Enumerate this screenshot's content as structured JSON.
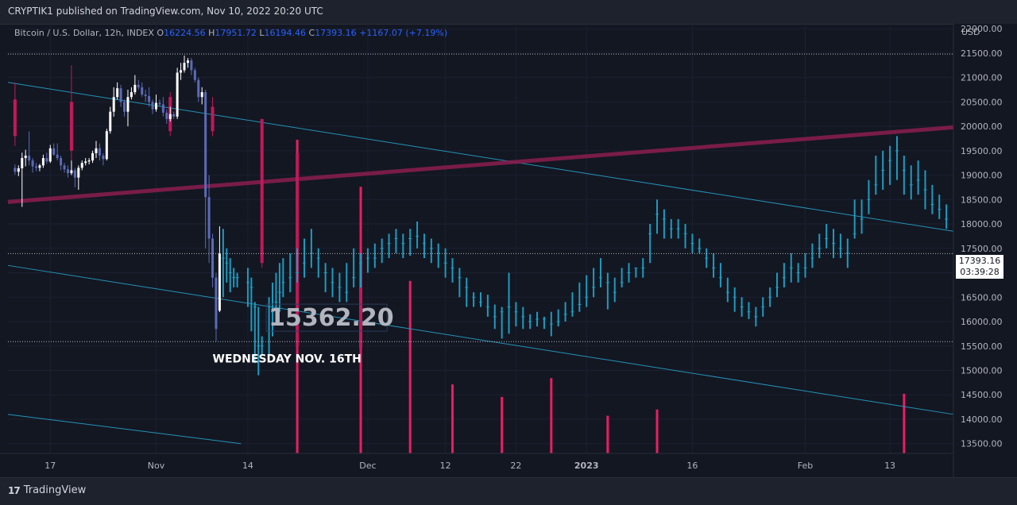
{
  "header": {
    "published_by": "CRYPTIK1 published on TradingView.com, Nov 10, 2022 20:20 UTC"
  },
  "legend": {
    "symbol": "Bitcoin / U.S. Dollar, 12h, INDEX",
    "open_label": "O",
    "open": "16224.56",
    "high_label": "H",
    "high": "17951.72",
    "low_label": "L",
    "low": "16194.46",
    "close_label": "C",
    "close": "17393.16",
    "change": "+1167.07 (+7.19%)"
  },
  "currency": "USD",
  "last_price": {
    "price": "17393.16",
    "countdown": "03:39:28"
  },
  "footer": {
    "brand": "TradingView",
    "logo_mark": "17"
  },
  "colors": {
    "background": "#131722",
    "bull": "#ffffff",
    "bear_candle": "#c2185b",
    "projection": "#1e9bbf",
    "channel": "#26a0c6",
    "resistance": "#8c1d4f",
    "volume": "#e91e63"
  },
  "chart_data": {
    "type": "bar",
    "title": "Bitcoin / U.S. Dollar, 12h, INDEX",
    "ylabel": "USD",
    "ylim": [
      13300,
      22100
    ],
    "yticks": [
      13500,
      14000,
      14500,
      15000,
      15500,
      16000,
      16500,
      17000,
      17500,
      18000,
      18500,
      19000,
      19500,
      20000,
      20500,
      21000,
      21500,
      22000
    ],
    "ytick_labels": [
      "13500.00",
      "14000.00",
      "14500.00",
      "15000.00",
      "15500.00",
      "16000.00",
      "16500.00",
      "17000.00",
      "17500.00",
      "18000.00",
      "18500.00",
      "19000.00",
      "19500.00",
      "20000.00",
      "20500.00",
      "21000.00",
      "21500.00",
      "22000.00"
    ],
    "x_range": [
      "2022-10-11",
      "2023-02-22"
    ],
    "xticks": [
      {
        "date": "2022-10-17",
        "label": "17"
      },
      {
        "date": "2022-11-01",
        "label": "Nov"
      },
      {
        "date": "2022-11-14",
        "label": "14"
      },
      {
        "date": "2022-12-01",
        "label": "Dec"
      },
      {
        "date": "2022-12-12",
        "label": "12"
      },
      {
        "date": "2022-12-22",
        "label": "22"
      },
      {
        "date": "2023-01-01",
        "label": "2023"
      },
      {
        "date": "2023-01-16",
        "label": "16"
      },
      {
        "date": "2023-02-01",
        "label": "Feb"
      },
      {
        "date": "2023-02-13",
        "label": "13"
      }
    ],
    "actual_candles": [
      [
        "2022-10-12",
        19150,
        19220,
        19010,
        19070
      ],
      [
        "2022-10-12 12:00",
        19070,
        19200,
        18980,
        19140
      ],
      [
        "2022-10-13",
        19140,
        19460,
        18350,
        19350
      ],
      [
        "2022-10-13 12:00",
        19350,
        19520,
        19180,
        19400
      ],
      [
        "2022-10-14",
        19400,
        19900,
        19200,
        19300
      ],
      [
        "2022-10-14 12:00",
        19300,
        19350,
        19050,
        19180
      ],
      [
        "2022-10-15",
        19180,
        19250,
        19080,
        19150
      ],
      [
        "2022-10-15 12:00",
        19150,
        19230,
        19080,
        19200
      ],
      [
        "2022-10-16",
        19200,
        19420,
        19150,
        19350
      ],
      [
        "2022-10-16 12:00",
        19350,
        19460,
        19230,
        19280
      ],
      [
        "2022-10-17",
        19280,
        19620,
        19250,
        19550
      ],
      [
        "2022-10-17 12:00",
        19550,
        19650,
        19400,
        19420
      ],
      [
        "2022-10-18",
        19420,
        19650,
        19300,
        19350
      ],
      [
        "2022-10-18 12:00",
        19350,
        19400,
        19100,
        19200
      ],
      [
        "2022-10-19",
        19200,
        19250,
        19050,
        19120
      ],
      [
        "2022-10-19 12:00",
        19120,
        19200,
        18950,
        19040
      ],
      [
        "2022-10-20",
        19040,
        19300,
        19000,
        19100
      ],
      [
        "2022-10-20 12:00",
        19100,
        19150,
        18750,
        18950
      ],
      [
        "2022-10-21",
        18950,
        19200,
        18700,
        19150
      ],
      [
        "2022-10-21 12:00",
        19150,
        19300,
        19100,
        19250
      ],
      [
        "2022-10-22",
        19250,
        19350,
        19200,
        19280
      ],
      [
        "2022-10-22 12:00",
        19280,
        19350,
        19220,
        19300
      ],
      [
        "2022-10-23",
        19300,
        19500,
        19250,
        19450
      ],
      [
        "2022-10-23 12:00",
        19450,
        19700,
        19350,
        19550
      ],
      [
        "2022-10-24",
        19550,
        19650,
        19300,
        19400
      ],
      [
        "2022-10-24 12:00",
        19400,
        19450,
        19200,
        19330
      ],
      [
        "2022-10-25",
        19330,
        19950,
        19300,
        19900
      ],
      [
        "2022-10-25 12:00",
        19900,
        20400,
        19850,
        20300
      ],
      [
        "2022-10-26",
        20300,
        20800,
        20200,
        20600
      ],
      [
        "2022-10-26 12:00",
        20600,
        20900,
        20550,
        20780
      ],
      [
        "2022-10-27",
        20780,
        20850,
        20400,
        20500
      ],
      [
        "2022-10-27 12:00",
        20500,
        20550,
        20200,
        20300
      ],
      [
        "2022-10-28",
        20300,
        20750,
        20000,
        20600
      ],
      [
        "2022-10-28 12:00",
        20600,
        20800,
        20550,
        20700
      ],
      [
        "2022-10-29",
        20700,
        21050,
        20650,
        20850
      ],
      [
        "2022-10-29 12:00",
        20850,
        20950,
        20750,
        20800
      ],
      [
        "2022-10-30",
        20800,
        20900,
        20600,
        20650
      ],
      [
        "2022-10-30 12:00",
        20650,
        20750,
        20500,
        20620
      ],
      [
        "2022-10-31",
        20620,
        20800,
        20400,
        20500
      ],
      [
        "2022-10-31 12:00",
        20500,
        20550,
        20250,
        20350
      ],
      [
        "2022-11-01",
        20350,
        20650,
        20300,
        20480
      ],
      [
        "2022-11-01 12:00",
        20480,
        20550,
        20400,
        20450
      ],
      [
        "2022-11-02",
        20450,
        20600,
        20200,
        20280
      ],
      [
        "2022-11-02 12:00",
        20280,
        20350,
        20050,
        20150
      ],
      [
        "2022-11-03",
        20150,
        20400,
        20100,
        20250
      ],
      [
        "2022-11-03 12:00",
        20250,
        20300,
        20150,
        20200
      ],
      [
        "2022-11-04",
        20200,
        21200,
        20150,
        21100
      ],
      [
        "2022-11-04 12:00",
        21100,
        21300,
        20950,
        21150
      ],
      [
        "2022-11-05",
        21150,
        21450,
        21100,
        21300
      ],
      [
        "2022-11-05 12:00",
        21300,
        21400,
        21200,
        21350
      ],
      [
        "2022-11-06",
        21350,
        21400,
        21050,
        21150
      ],
      [
        "2022-11-06 12:00",
        21150,
        21200,
        20900,
        20950
      ],
      [
        "2022-11-07",
        20950,
        21000,
        20500,
        20600
      ],
      [
        "2022-11-07 12:00",
        20600,
        20800,
        20450,
        20700
      ],
      [
        "2022-11-08",
        20700,
        20750,
        17500,
        18550
      ],
      [
        "2022-11-08 12:00",
        18550,
        19000,
        17200,
        17700
      ],
      [
        "2022-11-09",
        17700,
        17800,
        16700,
        16900
      ],
      [
        "2022-11-09 12:00",
        16900,
        17000,
        15600,
        15850
      ],
      [
        "2022-11-10",
        16224.56,
        17951.72,
        16194.46,
        17393.16
      ]
    ],
    "hypothetical_bear_candles": [
      [
        "2022-10-12",
        20550,
        20900,
        19600,
        19800
      ],
      [
        "2022-10-20",
        20500,
        21250,
        19300,
        19500
      ],
      [
        "2022-11-03",
        20600,
        20700,
        19800,
        19900
      ],
      [
        "2022-11-09",
        20400,
        20600,
        19800,
        19900
      ],
      [
        "2022-11-16",
        20150,
        20150,
        17100,
        17200
      ],
      [
        "2022-11-21",
        19450,
        19450,
        15400,
        15500
      ],
      [
        "2022-11-30",
        17400,
        17400,
        15350,
        15450
      ]
    ],
    "projection_bars": [
      [
        "2022-11-10 12:00",
        17300,
        17900,
        16500
      ],
      [
        "2022-11-11",
        17200,
        17500,
        16800
      ],
      [
        "2022-11-11 12:00",
        17000,
        17300,
        16600
      ],
      [
        "2022-11-12",
        16900,
        17100,
        16700
      ],
      [
        "2022-11-12 12:00",
        16900,
        17000,
        16700
      ],
      [
        "2022-11-14",
        16800,
        17100,
        16300
      ],
      [
        "2022-11-14 12:00",
        16700,
        16900,
        15800
      ],
      [
        "2022-11-15",
        16300,
        16400,
        15150
      ],
      [
        "2022-11-15 12:00",
        15500,
        16300,
        14900
      ],
      [
        "2022-11-16",
        15500,
        15700,
        15300
      ],
      [
        "2022-11-17",
        15800,
        16500,
        15300
      ],
      [
        "2022-11-17 12:00",
        16200,
        16800,
        15700
      ],
      [
        "2022-11-18",
        16400,
        17000,
        16000
      ],
      [
        "2022-11-18 12:00",
        16600,
        17200,
        16200
      ],
      [
        "2022-11-19",
        16800,
        17300,
        16500
      ],
      [
        "2022-11-20",
        16900,
        17400,
        16600
      ],
      [
        "2022-11-21",
        17000,
        17500,
        16800
      ],
      [
        "2022-11-22",
        17200,
        17700,
        16900
      ],
      [
        "2022-11-23",
        17400,
        17900,
        17100
      ],
      [
        "2022-11-24",
        17300,
        17500,
        16900
      ],
      [
        "2022-11-25",
        17000,
        17200,
        16600
      ],
      [
        "2022-11-26",
        16800,
        17100,
        16500
      ],
      [
        "2022-11-27",
        16700,
        17000,
        16400
      ],
      [
        "2022-11-28",
        16600,
        17200,
        16400
      ],
      [
        "2022-11-29",
        16900,
        17500,
        16700
      ],
      [
        "2022-11-30",
        17200,
        17400,
        16700
      ],
      [
        "2022-12-01",
        17300,
        17500,
        17000
      ],
      [
        "2022-12-02",
        17300,
        17600,
        17100
      ],
      [
        "2022-12-03",
        17500,
        17700,
        17200
      ],
      [
        "2022-12-04",
        17600,
        17800,
        17300
      ],
      [
        "2022-12-05",
        17700,
        17900,
        17400
      ],
      [
        "2022-12-06",
        17600,
        17800,
        17300
      ],
      [
        "2022-12-07",
        17700,
        17900,
        17350
      ],
      [
        "2022-12-08",
        17750,
        18050,
        17500
      ],
      [
        "2022-12-09",
        17600,
        17800,
        17300
      ],
      [
        "2022-12-10",
        17500,
        17700,
        17200
      ],
      [
        "2022-12-11",
        17400,
        17600,
        17100
      ],
      [
        "2022-12-12",
        17200,
        17500,
        16900
      ],
      [
        "2022-12-13",
        17100,
        17300,
        16800
      ],
      [
        "2022-12-14",
        16900,
        17100,
        16500
      ],
      [
        "2022-12-15",
        16700,
        16900,
        16300
      ],
      [
        "2022-12-16",
        16500,
        16600,
        16300
      ],
      [
        "2022-12-17",
        16400,
        16600,
        16300
      ],
      [
        "2022-12-18",
        16300,
        16550,
        16100
      ],
      [
        "2022-12-19",
        16100,
        16350,
        15850
      ],
      [
        "2022-12-20",
        16200,
        16300,
        15650
      ],
      [
        "2022-12-21",
        16300,
        17000,
        15750
      ],
      [
        "2022-12-22",
        16200,
        16400,
        15900
      ],
      [
        "2022-12-23",
        16100,
        16300,
        15850
      ],
      [
        "2022-12-24",
        16000,
        16150,
        15850
      ],
      [
        "2022-12-25",
        16050,
        16200,
        15900
      ],
      [
        "2022-12-26",
        16050,
        16100,
        15850
      ],
      [
        "2022-12-27",
        15950,
        16200,
        15700
      ],
      [
        "2022-12-28",
        16000,
        16250,
        15900
      ],
      [
        "2022-12-29",
        16150,
        16400,
        16000
      ],
      [
        "2022-12-30",
        16200,
        16600,
        16100
      ],
      [
        "2022-12-31",
        16350,
        16800,
        16200
      ],
      [
        "2023-01-01",
        16500,
        16950,
        16300
      ],
      [
        "2023-01-02",
        16700,
        17100,
        16500
      ],
      [
        "2023-01-03",
        16900,
        17300,
        16700
      ],
      [
        "2023-01-04",
        16800,
        17000,
        16250
      ],
      [
        "2023-01-05",
        16600,
        16900,
        16400
      ],
      [
        "2023-01-06",
        16800,
        17100,
        16700
      ],
      [
        "2023-01-07",
        17000,
        17200,
        16800
      ],
      [
        "2023-01-08",
        17100,
        17100,
        16900
      ],
      [
        "2023-01-09",
        17100,
        17300,
        16900
      ],
      [
        "2023-01-10",
        17800,
        18000,
        17200
      ],
      [
        "2023-01-11",
        18200,
        18500,
        17800
      ],
      [
        "2023-01-12",
        18100,
        18300,
        17700
      ],
      [
        "2023-01-13",
        17900,
        18100,
        17700
      ],
      [
        "2023-01-14",
        17900,
        18100,
        17700
      ],
      [
        "2023-01-15",
        17800,
        18000,
        17500
      ],
      [
        "2023-01-16",
        17600,
        17800,
        17400
      ],
      [
        "2023-01-17",
        17500,
        17700,
        17400
      ],
      [
        "2023-01-18",
        17300,
        17500,
        17100
      ],
      [
        "2023-01-19",
        17100,
        17400,
        16900
      ],
      [
        "2023-01-20",
        16900,
        17200,
        16700
      ],
      [
        "2023-01-21",
        16600,
        16900,
        16400
      ],
      [
        "2023-01-22",
        16500,
        16700,
        16200
      ],
      [
        "2023-01-23",
        16300,
        16500,
        16100
      ],
      [
        "2023-01-24",
        16200,
        16400,
        16050
      ],
      [
        "2023-01-25",
        16100,
        16300,
        15900
      ],
      [
        "2023-01-26",
        16300,
        16500,
        16100
      ],
      [
        "2023-01-27",
        16500,
        16700,
        16300
      ],
      [
        "2023-01-28",
        16700,
        17000,
        16500
      ],
      [
        "2023-01-29",
        16900,
        17200,
        16700
      ],
      [
        "2023-01-30",
        17100,
        17400,
        16800
      ],
      [
        "2023-01-31",
        17000,
        17200,
        16800
      ],
      [
        "2023-02-01",
        17100,
        17400,
        16900
      ],
      [
        "2023-02-02",
        17300,
        17600,
        17100
      ],
      [
        "2023-02-03",
        17500,
        17800,
        17300
      ],
      [
        "2023-02-04",
        17700,
        18000,
        17500
      ],
      [
        "2023-02-05",
        17600,
        17900,
        17300
      ],
      [
        "2023-02-06",
        17500,
        17800,
        17300
      ],
      [
        "2023-02-07",
        17400,
        17700,
        17100
      ],
      [
        "2023-02-08",
        17800,
        18500,
        17700
      ],
      [
        "2023-02-09",
        18100,
        18500,
        17800
      ],
      [
        "2023-02-10",
        18500,
        18900,
        18200
      ],
      [
        "2023-02-11",
        18800,
        19400,
        18600
      ],
      [
        "2023-02-12",
        19100,
        19500,
        18700
      ],
      [
        "2023-02-13",
        19300,
        19600,
        18800
      ],
      [
        "2023-02-14",
        19500,
        19800,
        18900
      ],
      [
        "2023-02-15",
        19100,
        19400,
        18600
      ],
      [
        "2023-02-16",
        18800,
        19200,
        18500
      ],
      [
        "2023-02-17",
        18900,
        19300,
        18600
      ],
      [
        "2023-02-18",
        18700,
        19100,
        18300
      ],
      [
        "2023-02-19",
        18400,
        18800,
        18200
      ],
      [
        "2023-02-20",
        18300,
        18600,
        18100
      ],
      [
        "2023-02-21",
        18100,
        18400,
        17900
      ]
    ],
    "volume_bars": [
      [
        "2022-11-21",
        1.0
      ],
      [
        "2022-11-30",
        0.85
      ],
      [
        "2022-12-07",
        0.55
      ],
      [
        "2022-12-13",
        0.22
      ],
      [
        "2022-12-20",
        0.18
      ],
      [
        "2022-12-27",
        0.24
      ],
      [
        "2023-01-04",
        0.12
      ],
      [
        "2023-01-11",
        0.14
      ],
      [
        "2023-02-15",
        0.19
      ]
    ],
    "trendlines": [
      {
        "kind": "channel_upper",
        "p1": [
          "2022-10-11",
          20900
        ],
        "p2": [
          "2023-02-22",
          17850
        ]
      },
      {
        "kind": "channel_lower",
        "p1": [
          "2022-10-11",
          17150
        ],
        "p2": [
          "2023-02-22",
          14100
        ]
      },
      {
        "kind": "channel_base",
        "p1": [
          "2022-10-11",
          14100
        ],
        "p2": [
          "2022-11-13",
          13500
        ]
      },
      {
        "kind": "resistance",
        "p1": [
          "2022-10-11",
          18450
        ],
        "p2": [
          "2023-02-22",
          19980
        ]
      }
    ],
    "hlines": [
      21480,
      17393.16,
      15590
    ],
    "annotations": [
      {
        "text": "15362.20",
        "date": "2022-11-21",
        "price": 15950
      },
      {
        "text": "WEDNESDAY NOV. 16TH",
        "date": "2022-11-09",
        "price": 15160
      }
    ]
  }
}
